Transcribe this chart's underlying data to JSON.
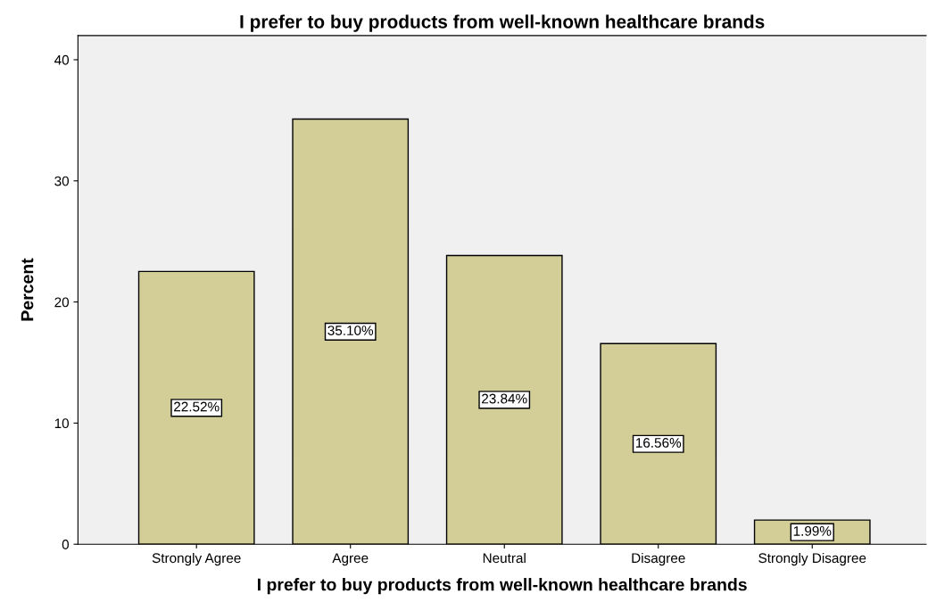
{
  "chart_data": {
    "type": "bar",
    "title": "I prefer to buy products from well-known healthcare brands",
    "xlabel": "I prefer to buy products from well-known healthcare brands",
    "ylabel": "Percent",
    "categories": [
      "Strongly Agree",
      "Agree",
      "Neutral",
      "Disagree",
      "Strongly Disagree"
    ],
    "values": [
      22.52,
      35.1,
      23.84,
      16.56,
      1.99
    ],
    "value_labels": [
      "22.52%",
      "35.10%",
      "23.84%",
      "16.56%",
      "1.99%"
    ],
    "color": "#d3ce97",
    "ylim": [
      0,
      42
    ],
    "yticks": [
      0,
      10,
      20,
      30,
      40
    ],
    "grid": false
  }
}
